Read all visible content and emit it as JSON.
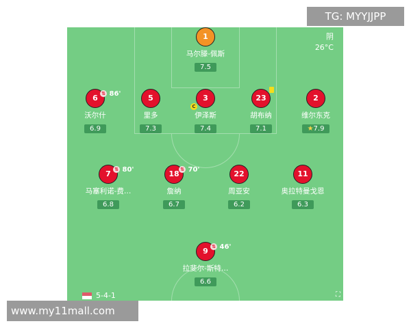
{
  "watermark_top": "TG: MYYJJPP",
  "watermark_bottom": "www.my11mall.com",
  "weather": {
    "condition": "阴",
    "temperature": "26°C"
  },
  "formation": "5-4-1",
  "colors": {
    "pitch": "#74cd84",
    "outfield": "#e3112c",
    "goalkeeper": "#f39325"
  },
  "players": [
    {
      "number": "1",
      "name": "马尔滕-佩斯",
      "rating": "7.5"
    },
    {
      "number": "6",
      "name": "沃尔什",
      "rating": "6.9",
      "sub": "86'"
    },
    {
      "number": "5",
      "name": "里多",
      "rating": "7.3"
    },
    {
      "number": "3",
      "name": "伊泽斯",
      "rating": "7.4",
      "captain": "C"
    },
    {
      "number": "23",
      "name": "胡布纳",
      "rating": "7.1"
    },
    {
      "number": "2",
      "name": "维尔东克",
      "rating": "7.9"
    },
    {
      "number": "7",
      "name": "马塞利诺-费…",
      "rating": "6.8",
      "sub": "80'"
    },
    {
      "number": "18",
      "name": "詹纳",
      "rating": "6.7",
      "sub": "70'"
    },
    {
      "number": "22",
      "name": "周亚安",
      "rating": "6.2"
    },
    {
      "number": "11",
      "name": "奥拉特曼戈恩",
      "rating": "6.3"
    },
    {
      "number": "9",
      "name": "拉斐尔-斯特…",
      "rating": "6.6",
      "sub": "46'"
    }
  ]
}
